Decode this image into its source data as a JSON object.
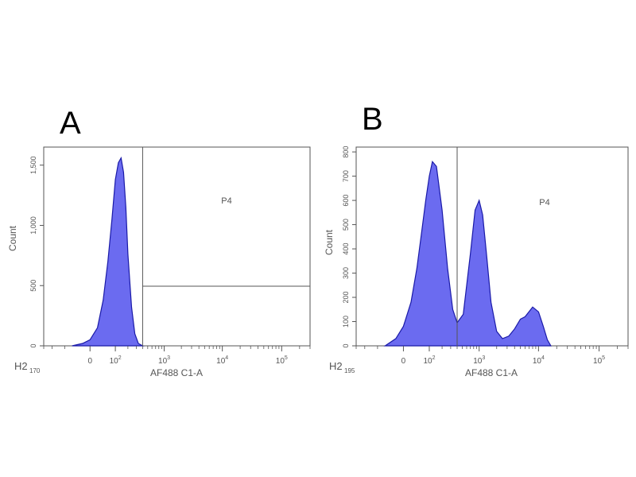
{
  "figure": {
    "panels": [
      {
        "panel_label": "A",
        "ylabel": "Count",
        "xlabel": "AF488 C1-A",
        "corner_label": "H2",
        "corner_sub": "170"
      },
      {
        "panel_label": "B",
        "ylabel": "Count",
        "xlabel": "AF488 C1-A",
        "corner_label": "H2",
        "corner_sub": "195"
      }
    ]
  },
  "colors": {
    "fill": "#6b6bf0",
    "stroke": "#1a1aa8",
    "frame": "#555555",
    "text": "#555555"
  },
  "chart_data": [
    {
      "type": "area",
      "panel": "A",
      "xlabel": "AF488 C1-A",
      "ylabel": "Count",
      "x_scale": "biexponential",
      "x_tick_labels": [
        "0",
        "10²",
        "10³",
        "10⁴",
        "10⁵"
      ],
      "y_ticks": [
        0,
        500,
        1000,
        1500
      ],
      "y_tick_labels": [
        "0",
        "500",
        "1,000",
        "1,500"
      ],
      "ylim": [
        0,
        1650
      ],
      "gate": {
        "name": "P4",
        "lower_edge_x_approx": 400
      },
      "series": [
        {
          "x": [
            -60,
            -20,
            0,
            20,
            40,
            60,
            80,
            100,
            120,
            140,
            160,
            180,
            200,
            240,
            280,
            330,
            400
          ],
          "y": [
            0,
            20,
            50,
            150,
            380,
            700,
            1050,
            1380,
            1520,
            1560,
            1440,
            1150,
            760,
            320,
            100,
            20,
            0
          ]
        }
      ]
    },
    {
      "type": "area",
      "panel": "B",
      "xlabel": "AF488 C1-A",
      "ylabel": "Count",
      "x_scale": "biexponential",
      "x_tick_labels": [
        "0",
        "10²",
        "10³",
        "10⁴",
        "10⁵"
      ],
      "y_ticks": [
        0,
        100,
        200,
        300,
        400,
        500,
        600,
        700,
        800
      ],
      "y_tick_labels": [
        "0",
        "100",
        "200",
        "300",
        "400",
        "500",
        "600",
        "700",
        "800"
      ],
      "ylim": [
        0,
        820
      ],
      "gate": {
        "name": "P4",
        "lower_edge_x_approx": 400
      },
      "series": [
        {
          "x": [
            -60,
            -20,
            0,
            20,
            40,
            60,
            80,
            100,
            120,
            150,
            200,
            260,
            330,
            400,
            520,
            700,
            850,
            1000,
            1150,
            1350,
            1600,
            2000,
            2500,
            3200,
            4000,
            5000,
            6000,
            8000,
            10000,
            12000,
            14000,
            16000
          ],
          "y": [
            0,
            30,
            80,
            180,
            320,
            470,
            600,
            700,
            760,
            740,
            560,
            320,
            150,
            95,
            130,
            380,
            560,
            600,
            540,
            370,
            180,
            60,
            30,
            40,
            70,
            110,
            120,
            160,
            140,
            80,
            25,
            0
          ]
        }
      ]
    }
  ]
}
